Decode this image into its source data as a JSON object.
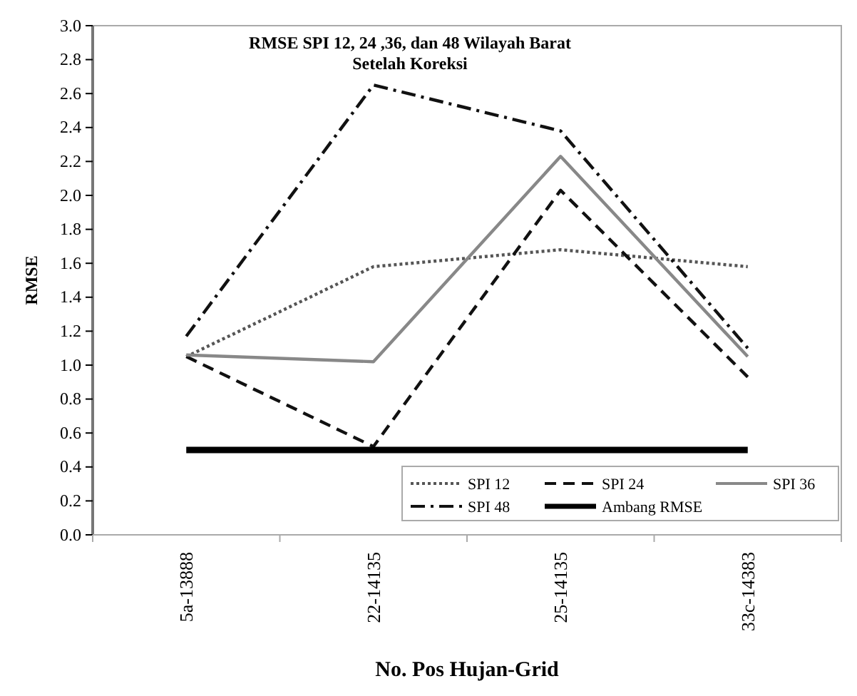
{
  "chart_data": {
    "type": "line",
    "title": "RMSE  SPI 12, 24 ,36, dan  48 Wilayah  Barat\nSetelah Koreksi",
    "xlabel": "No. Pos Hujan-Grid",
    "ylabel": "RMSE",
    "categories": [
      "5a-13888",
      "22-14135",
      "25-14135",
      "33c-14383"
    ],
    "series": [
      {
        "name": "SPI 12",
        "color": "#555555",
        "line_style": "dotted",
        "values": [
          1.05,
          1.58,
          1.68,
          1.58
        ]
      },
      {
        "name": "SPI 24",
        "color": "#111111",
        "line_style": "dashed",
        "values": [
          1.05,
          0.52,
          2.03,
          0.93
        ]
      },
      {
        "name": "SPI 36",
        "color": "#888888",
        "line_style": "solid",
        "values": [
          1.06,
          1.02,
          2.23,
          1.05
        ]
      },
      {
        "name": "SPI 48",
        "color": "#111111",
        "line_style": "dashdot",
        "values": [
          1.17,
          2.65,
          2.38,
          1.1
        ]
      },
      {
        "name": "Ambang RMSE",
        "color": "#000000",
        "line_style": "solid",
        "values": [
          0.5,
          0.5,
          0.5,
          0.5
        ]
      }
    ],
    "ylim": [
      0,
      3
    ],
    "yticks": [
      {
        "value": 0,
        "label": "0.0"
      },
      {
        "value": 0.2,
        "label": "0.2"
      },
      {
        "value": 0.4,
        "label": "0.4"
      },
      {
        "value": 0.6,
        "label": "0.6"
      },
      {
        "value": 0.8,
        "label": "0.8"
      },
      {
        "value": 1,
        "label": "1.0"
      },
      {
        "value": 1.2,
        "label": "1.2"
      },
      {
        "value": 1.4,
        "label": "1.4"
      },
      {
        "value": 1.6,
        "label": "1.6"
      },
      {
        "value": 1.8,
        "label": "1.8"
      },
      {
        "value": 2,
        "label": "2.0"
      },
      {
        "value": 2.2,
        "label": "2.2"
      },
      {
        "value": 2.4,
        "label": "2.4"
      },
      {
        "value": 2.6,
        "label": "2.6"
      },
      {
        "value": 2.8,
        "label": "2.8"
      },
      {
        "value": 3,
        "label": "3.0"
      }
    ],
    "grid": false,
    "legend": "bottom right",
    "marker": "none"
  }
}
